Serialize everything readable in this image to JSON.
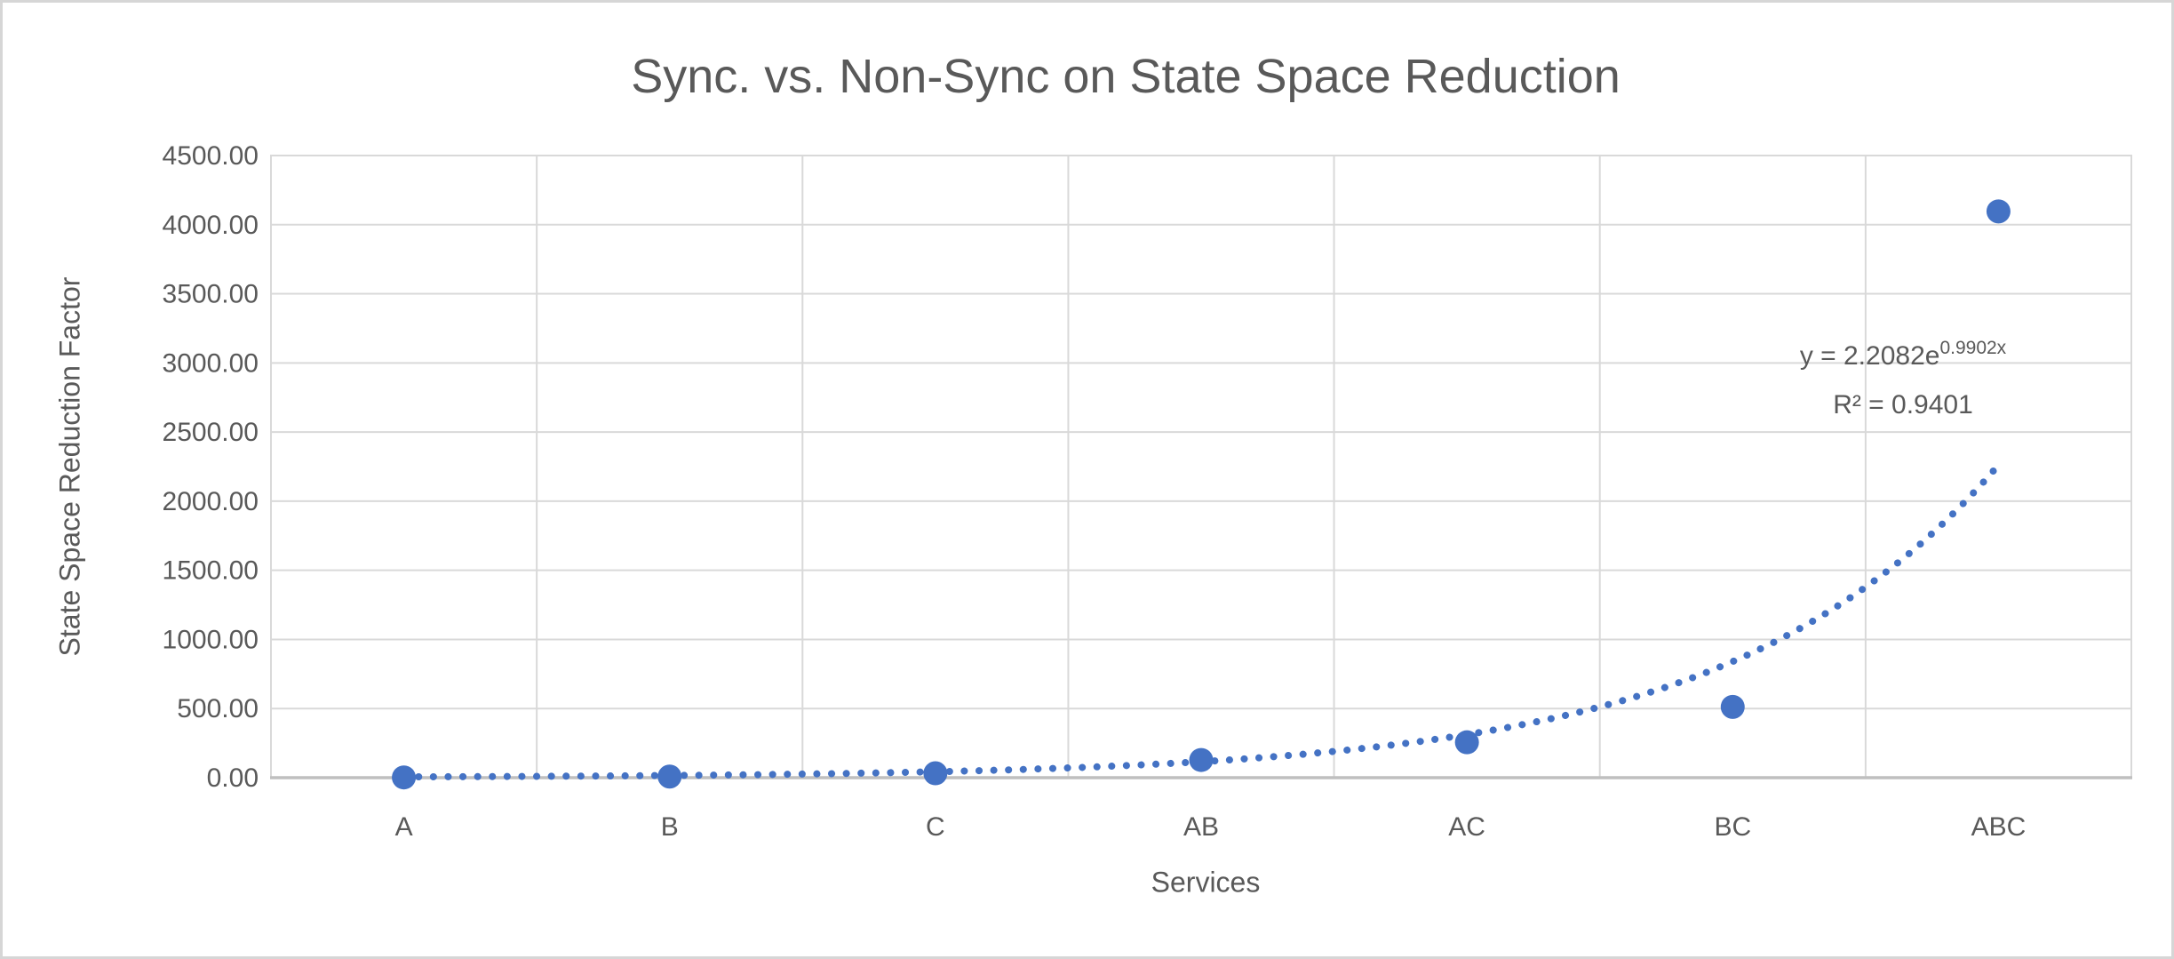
{
  "chart_data": {
    "type": "scatter",
    "title": "Sync. vs. Non-Sync on State Space Reduction",
    "xlabel": "Services",
    "ylabel": "State Space Reduction Factor",
    "categories": [
      "A",
      "B",
      "C",
      "AB",
      "AC",
      "BC",
      "ABC"
    ],
    "series": [
      {
        "name": "State Space Reduction Factor",
        "values": [
          2,
          8,
          32,
          128,
          256,
          512,
          4096
        ]
      }
    ],
    "ylim": [
      0,
      4500
    ],
    "ytick_step": 500,
    "ytick_labels": [
      "0.00",
      "500.00",
      "1000.00",
      "1500.00",
      "2000.00",
      "2500.00",
      "3000.00",
      "3500.00",
      "4000.00",
      "4500.00"
    ],
    "grid": "horizontal and vertical gridlines, light gray",
    "legend": "none",
    "trendline": {
      "type": "exponential",
      "a": 2.2082,
      "b": 0.9902,
      "r_squared": 0.9401,
      "label_prefix": "y = 2.2082e",
      "label_exponent": "0.9902x",
      "r2_label": "R² = 0.9401",
      "style": "dotted"
    },
    "colors": {
      "marker": "#4472c4",
      "trendline": "#4472c4",
      "gridline": "#d9d9d9",
      "axis_line": "#bfbfbf",
      "text": "#595959",
      "border": "#d6d6d6",
      "background": "#ffffff"
    }
  }
}
